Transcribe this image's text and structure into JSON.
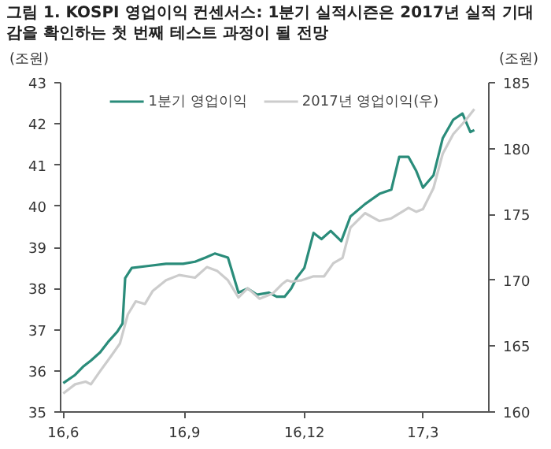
{
  "chart_data": {
    "type": "line",
    "title": "그림 1. KOSPI 영업이익 컨센서스: 1분기 실적시즌은 2017년 실적 기대 감을 확인하는 첫 번째 테스트 과정이 될 전망",
    "ylabel": "(조원)",
    "y2label": "(조원)",
    "xlim": [
      "2016-05-30",
      "2017-04-20"
    ],
    "xticks": [
      {
        "value": "2016-06-01",
        "label": "16,6"
      },
      {
        "value": "2016-09-01",
        "label": "16,9"
      },
      {
        "value": "2016-12-01",
        "label": "16,12"
      },
      {
        "value": "2017-03-01",
        "label": "17,3"
      }
    ],
    "ylim": [
      35,
      43
    ],
    "yticks": [
      35,
      36,
      37,
      38,
      39,
      40,
      41,
      42,
      43
    ],
    "y2lim": [
      160,
      185
    ],
    "y2ticks": [
      160,
      165,
      170,
      175,
      180,
      185
    ],
    "grid": false,
    "legend": "top",
    "marker": "none",
    "line_style": "solid",
    "series": [
      {
        "name": "1분기 영업이익",
        "color": "#2a8c7a",
        "x": [
          "2016-06-01",
          "2016-06-10",
          "2016-06-16",
          "2016-06-22",
          "2016-06-29",
          "2016-07-05",
          "2016-07-12",
          "2016-07-16",
          "2016-07-18",
          "2016-07-23",
          "2016-08-05",
          "2016-08-18",
          "2016-08-31",
          "2016-09-09",
          "2016-09-17",
          "2016-09-24",
          "2016-10-04",
          "2016-10-12",
          "2016-10-19",
          "2016-10-26",
          "2016-11-04",
          "2016-11-10",
          "2016-11-16",
          "2016-11-21",
          "2016-11-25",
          "2016-12-01",
          "2016-12-08",
          "2016-12-14",
          "2016-12-21",
          "2016-12-29",
          "2017-01-05",
          "2017-01-16",
          "2017-01-27",
          "2017-02-05",
          "2017-02-11",
          "2017-02-18",
          "2017-02-24",
          "2017-03-01",
          "2017-03-09",
          "2017-03-16",
          "2017-03-24",
          "2017-03-31",
          "2017-04-06",
          "2017-04-09"
        ],
        "values": [
          35.7,
          35.9,
          36.1,
          36.25,
          36.45,
          36.7,
          36.95,
          37.15,
          38.25,
          38.5,
          38.55,
          38.6,
          38.6,
          38.65,
          38.75,
          38.85,
          38.75,
          37.9,
          38.0,
          37.85,
          37.9,
          37.8,
          37.8,
          38.0,
          38.25,
          38.5,
          39.35,
          39.2,
          39.4,
          39.15,
          39.75,
          40.05,
          40.3,
          40.4,
          41.2,
          41.2,
          40.85,
          40.45,
          40.75,
          41.65,
          42.1,
          42.25,
          41.8,
          41.85
        ]
      },
      {
        "name": "2017년 영업이익(우)",
        "color": "#cccccc",
        "axis": "y2",
        "x": [
          "2016-06-01",
          "2016-06-10",
          "2016-06-18",
          "2016-06-22",
          "2016-06-29",
          "2016-07-07",
          "2016-07-14",
          "2016-07-20",
          "2016-07-26",
          "2016-08-02",
          "2016-08-08",
          "2016-08-18",
          "2016-08-28",
          "2016-09-09",
          "2016-09-18",
          "2016-09-26",
          "2016-10-04",
          "2016-10-12",
          "2016-10-19",
          "2016-10-28",
          "2016-11-07",
          "2016-11-14",
          "2016-11-18",
          "2016-11-21",
          "2016-11-29",
          "2016-12-08",
          "2016-12-16",
          "2016-12-23",
          "2016-12-30",
          "2017-01-05",
          "2017-01-16",
          "2017-01-27",
          "2017-02-05",
          "2017-02-18",
          "2017-02-24",
          "2017-03-01",
          "2017-03-09",
          "2017-03-16",
          "2017-03-24",
          "2017-04-02",
          "2017-04-09"
        ],
        "values": [
          161.4,
          162.1,
          162.3,
          162.1,
          163.1,
          164.2,
          165.2,
          167.4,
          168.4,
          168.2,
          169.2,
          170.0,
          170.4,
          170.2,
          171.0,
          170.7,
          170.0,
          168.7,
          169.4,
          168.6,
          169.0,
          169.7,
          170.0,
          169.9,
          170.0,
          170.3,
          170.3,
          171.3,
          171.7,
          174.0,
          175.1,
          174.5,
          174.7,
          175.5,
          175.2,
          175.4,
          177.0,
          179.6,
          181.1,
          182.1,
          183.0
        ]
      }
    ]
  }
}
